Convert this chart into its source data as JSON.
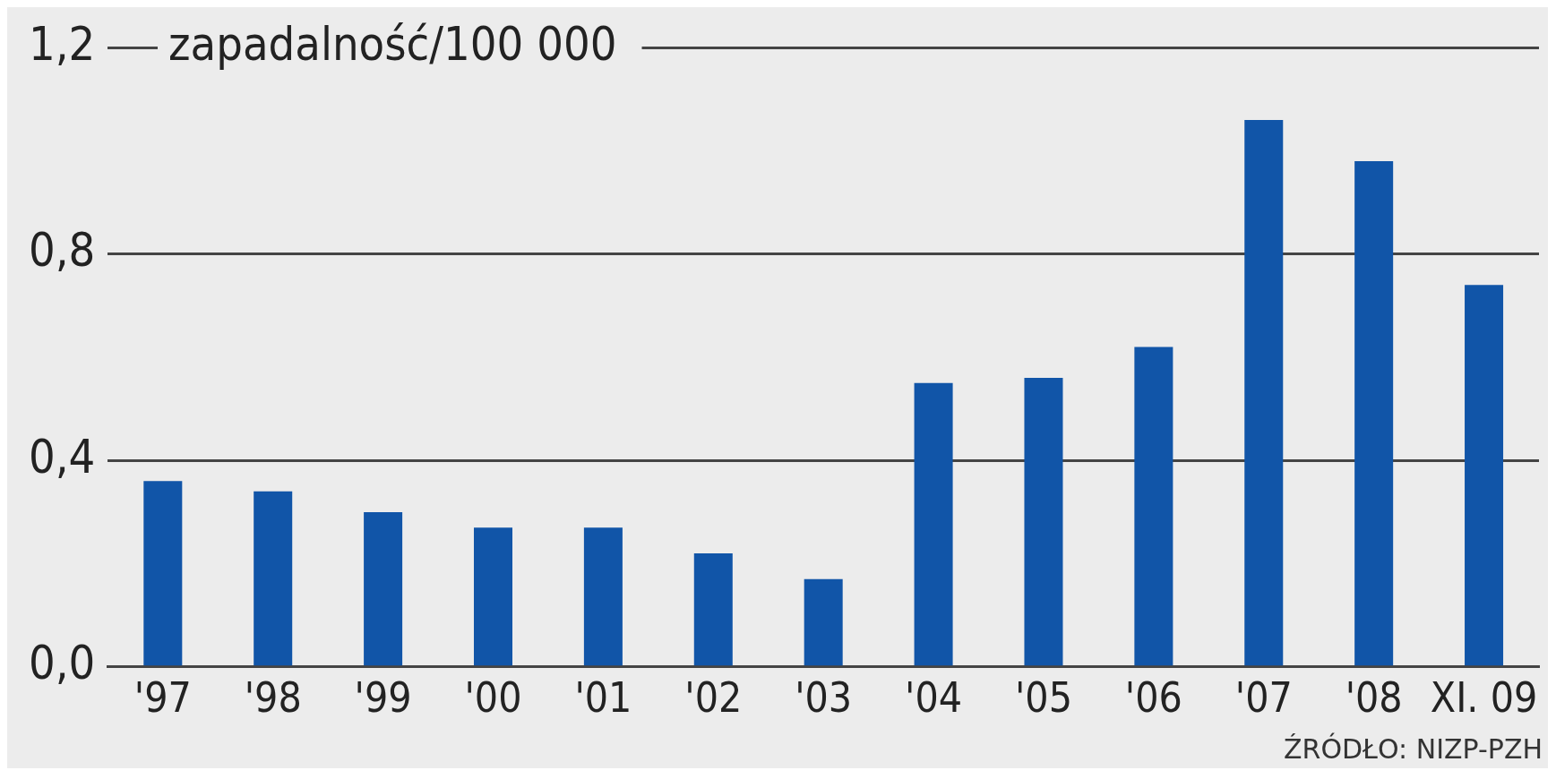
{
  "chart_data": {
    "type": "bar",
    "ylabel": "zapadalność/100 000",
    "categories": [
      "'97",
      "'98",
      "'99",
      "'00",
      "'01",
      "'02",
      "'03",
      "'04",
      "'05",
      "'06",
      "'07",
      "'08",
      "XI. 09"
    ],
    "values": [
      0.36,
      0.34,
      0.3,
      0.27,
      0.27,
      0.22,
      0.17,
      0.55,
      0.56,
      0.62,
      1.06,
      0.98,
      0.74
    ],
    "color": "#1155a8",
    "ylim": [
      0,
      1.2
    ],
    "yticks": [
      {
        "value": 0,
        "label": "0,0"
      },
      {
        "value": 0.4,
        "label": "0,4"
      },
      {
        "value": 0.8,
        "label": "0,8"
      },
      {
        "value": 1.2,
        "label": "1,2"
      }
    ],
    "grid": "y",
    "legend": false,
    "annotations": [
      "ŹRÓDŁO: NIZP-PZH"
    ]
  }
}
